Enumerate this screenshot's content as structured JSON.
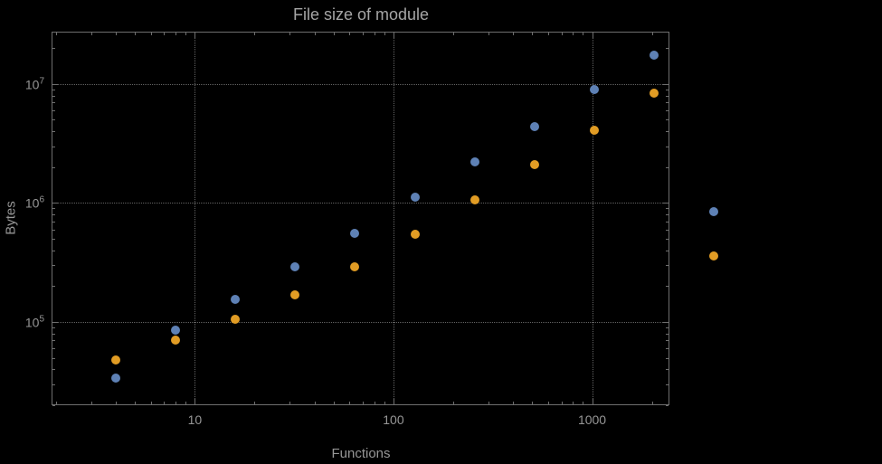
{
  "chart_data": {
    "type": "scatter",
    "title": "File size of module",
    "xlabel": "Functions",
    "ylabel": "Bytes",
    "xscale": "log",
    "yscale": "log",
    "xlim": [
      1.9,
      2450
    ],
    "ylim": [
      20000,
      27500000
    ],
    "grid": "dotted, major gridlines only",
    "legend": "none",
    "x_ticks": [
      {
        "label": "10",
        "value": 10
      },
      {
        "label": "100",
        "value": 100
      },
      {
        "label": "1000",
        "value": 1000
      }
    ],
    "y_ticks": [
      {
        "base": "10",
        "exp": "5",
        "value": 100000
      },
      {
        "base": "10",
        "exp": "6",
        "value": 1000000
      },
      {
        "base": "10",
        "exp": "7",
        "value": 10000000
      }
    ],
    "colors": {
      "frame": "#6e6e6e",
      "grid": "#636363",
      "text": "#969696",
      "title": "#a5a5a5"
    },
    "series": [
      {
        "name": "series-1-blue",
        "color": "#5e81b5",
        "points": [
          [
            4,
            34000
          ],
          [
            8,
            85000
          ],
          [
            16,
            155000
          ],
          [
            32,
            290000
          ],
          [
            64,
            560000
          ],
          [
            128,
            1120000
          ],
          [
            256,
            2200000
          ],
          [
            512,
            4400000
          ],
          [
            1024,
            8900000
          ],
          [
            2048,
            17500000
          ],
          [
            4096,
            840000
          ]
        ]
      },
      {
        "name": "series-2-orange",
        "color": "#e19c24",
        "points": [
          [
            4,
            48000
          ],
          [
            8,
            70000
          ],
          [
            16,
            105000
          ],
          [
            32,
            170000
          ],
          [
            64,
            290000
          ],
          [
            128,
            550000
          ],
          [
            256,
            1060000
          ],
          [
            512,
            2100000
          ],
          [
            1024,
            4100000
          ],
          [
            2048,
            8400000
          ],
          [
            4096,
            360000
          ]
        ]
      }
    ]
  }
}
